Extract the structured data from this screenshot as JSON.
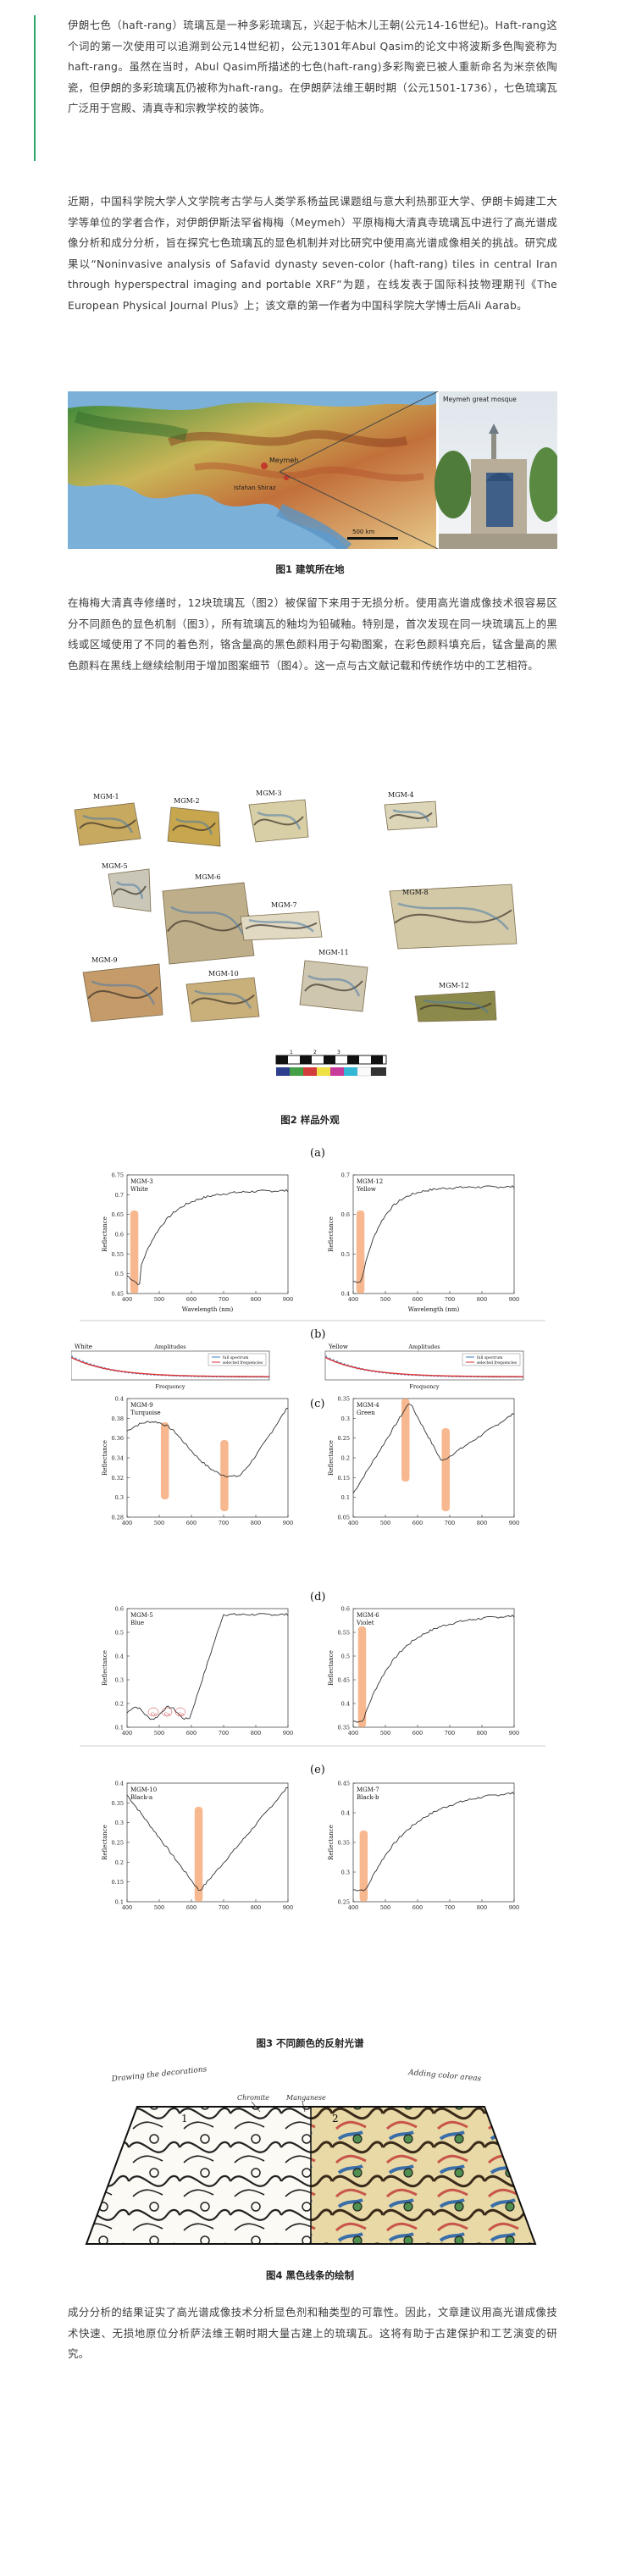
{
  "para1": "伊朗七色（haft-rang）琉璃瓦是一种多彩琉璃瓦，兴起于帖木儿王朝(公元14-16世纪)。Haft-rang这个词的第一次使用可以追溯到公元14世纪初，公元1301年Abul Qasim的论文中将波斯多色陶瓷称为haft-rang。虽然在当时，Abul Qasim所描述的七色(haft-rang)多彩陶瓷已被人重新命名为米奈依陶瓷，但伊朗的多彩琉璃瓦仍被称为haft-rang。在伊朗萨法维王朝时期（公元1501-1736），七色琉璃瓦广泛用于宫殿、清真寺和宗教学校的装饰。",
  "para2": "近期，中国科学院大学人文学院考古学与人类学系杨益民课题组与意大利热那亚大学、伊朗卡姆建工大学等单位的学者合作，对伊朗伊斯法罕省梅梅（Meymeh）平原梅梅大清真寺琉璃瓦中进行了高光谱成像分析和成分分析，旨在探究七色琉璃瓦的显色机制并对比研究中使用高光谱成像相关的挑战。研究成果以“Noninvasive analysis of Safavid dynasty seven-color (haft-rang) tiles in central Iran through hyperspectral imaging and portable XRF”为题，在线发表于国际科技物理期刊《The European Physical Journal Plus》上；该文章的第一作者为中国科学院大学博士后Ali Aarab。",
  "fig1": {
    "caption": "图1 建筑所在地",
    "mosque_label": "Meymeh great mosque",
    "scale_label": "500 km",
    "map_labels": [
      "Meymeh",
      "Isfahan Shiraz"
    ]
  },
  "para3": "在梅梅大清真寺修缮时，12块琉璃瓦（图2）被保留下来用于无损分析。使用高光谱成像技术很容易区分不同颜色的显色机制（图3），所有琉璃瓦的釉均为铅碱釉。特别是，首次发现在同一块琉璃瓦上的黑线或区域使用了不同的着色剂，铬含量高的黑色颜料用于勾勒图案，在彩色颜料填充后，锰含量高的黑色颜料在黑线上继续绘制用于增加图案细节（图4）。这一点与古文献记载和传统作坊中的工艺相符。",
  "fig2": {
    "caption": "图2 样品外观",
    "samples": [
      "MGM-1",
      "MGM-2",
      "MGM-3",
      "MGM-4",
      "MGM-5",
      "MGM-6",
      "MGM-7",
      "MGM-8",
      "MGM-9",
      "MGM-10",
      "MGM-11",
      "MGM-12"
    ],
    "scale_numbers": [
      "1",
      "2",
      "3"
    ]
  },
  "fig3": {
    "caption": "图3 不同颜色的反射光谱",
    "panel_labels": [
      "(a)",
      "(b)",
      "(c)",
      "(d)",
      "(e)"
    ],
    "xlabel": "Wavelength (nm)",
    "ylabel": "Reflectance",
    "freq_label": "Frequency",
    "amp_titles": [
      "Amplitudes",
      "Amplitudes"
    ],
    "amp_sample_labels": [
      "White",
      "Yellow"
    ],
    "legend": [
      "full spectrum",
      "selected frequencies"
    ],
    "panels": [
      {
        "name": "MGM-3",
        "color": "White"
      },
      {
        "name": "MGM-12",
        "color": "Yellow"
      },
      {
        "name": "MGM-9",
        "color": "Turquoise"
      },
      {
        "name": "MGM-4",
        "color": "Green"
      },
      {
        "name": "MGM-5",
        "color": "Blue"
      },
      {
        "name": "MGM-6",
        "color": "Violet"
      },
      {
        "name": "MGM-10",
        "color": "Black-a"
      },
      {
        "name": "MGM-7",
        "color": "Black-b"
      }
    ],
    "blue_annotations": [
      "Co",
      "Co",
      "Co"
    ]
  },
  "fig4": {
    "caption": "图4 黑色线条的绘制",
    "left_label": "Drawing the decorations",
    "right_label": "Adding color areas",
    "chromite_label": "Chromite",
    "manganese_label": "Manganese",
    "numbers": [
      "1",
      "2"
    ]
  },
  "para4": "成分分析的结果证实了高光谱成像技术分析显色剂和釉类型的可靠性。因此，文章建议用高光谱成像技术快速、无损地原位分析萨法维王朝时期大量古建上的琉璃瓦。这将有助于古建保护和工艺演变的研究。",
  "colors": {
    "accent": "#2fa66b",
    "highlight": "#f4a06a"
  }
}
